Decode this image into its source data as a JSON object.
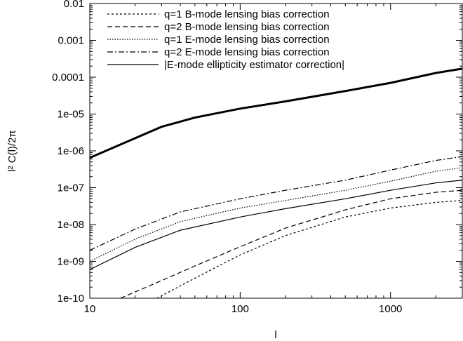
{
  "chart_data": {
    "type": "line",
    "title": "",
    "xlabel": "l",
    "ylabel": "l² C(l)/2π",
    "x_scale": "log",
    "y_scale": "log",
    "xlim": [
      10,
      3000
    ],
    "ylim": [
      1e-10,
      0.01
    ],
    "x_ticks": [
      "10",
      "100",
      "1000"
    ],
    "y_ticks": [
      "1e-10",
      "1e-09",
      "1e-08",
      "1e-07",
      "1e-06",
      "1e-05",
      "0.0001",
      "0.001",
      "0.01"
    ],
    "legend_position": "top-left",
    "series": [
      {
        "name": "q=1 B-mode lensing bias correction",
        "dash": "dotted-short",
        "points": [
          [
            28,
            1e-10
          ],
          [
            50,
            3.5e-10
          ],
          [
            100,
            1.5e-09
          ],
          [
            200,
            5e-09
          ],
          [
            500,
            1.6e-08
          ],
          [
            1000,
            2.8e-08
          ],
          [
            2000,
            4e-08
          ],
          [
            3000,
            4.5e-08
          ]
        ]
      },
      {
        "name": "q=2 B-mode lensing bias correction",
        "dash": "dashed",
        "points": [
          [
            16,
            1e-10
          ],
          [
            30,
            3e-10
          ],
          [
            50,
            7.5e-10
          ],
          [
            100,
            2.5e-09
          ],
          [
            200,
            8e-09
          ],
          [
            500,
            2.5e-08
          ],
          [
            1000,
            5e-08
          ],
          [
            2000,
            7.5e-08
          ],
          [
            3000,
            8.5e-08
          ]
        ]
      },
      {
        "name": "q=1 E-mode lensing bias correction",
        "dash": "dotted",
        "points": [
          [
            10,
            1e-09
          ],
          [
            20,
            4e-09
          ],
          [
            40,
            1.2e-08
          ],
          [
            100,
            2.8e-08
          ],
          [
            200,
            4.5e-08
          ],
          [
            500,
            8.5e-08
          ],
          [
            1000,
            1.5e-07
          ],
          [
            2000,
            2.8e-07
          ],
          [
            3000,
            3.5e-07
          ]
        ]
      },
      {
        "name": "q=2 E-mode lensing bias correction",
        "dash": "dash-dot",
        "points": [
          [
            10,
            2e-09
          ],
          [
            20,
            7.5e-09
          ],
          [
            40,
            2.2e-08
          ],
          [
            100,
            5e-08
          ],
          [
            200,
            8.5e-08
          ],
          [
            500,
            1.6e-07
          ],
          [
            1000,
            3e-07
          ],
          [
            2000,
            5.5e-07
          ],
          [
            3000,
            7e-07
          ]
        ]
      },
      {
        "name": "|E-mode ellipticity estimator correction|",
        "dash": "solid",
        "points": [
          [
            10,
            6e-10
          ],
          [
            20,
            2.4e-09
          ],
          [
            40,
            7e-09
          ],
          [
            100,
            1.6e-08
          ],
          [
            200,
            2.7e-08
          ],
          [
            500,
            5e-08
          ],
          [
            1000,
            8.5e-08
          ],
          [
            2000,
            1.35e-07
          ],
          [
            3000,
            1.6e-07
          ]
        ]
      },
      {
        "name": "",
        "dash": "solid-thick",
        "points": [
          [
            10,
            6.5e-07
          ],
          [
            20,
            2.2e-06
          ],
          [
            30,
            4.5e-06
          ],
          [
            50,
            8e-06
          ],
          [
            100,
            1.4e-05
          ],
          [
            200,
            2.2e-05
          ],
          [
            500,
            4.2e-05
          ],
          [
            1000,
            7e-05
          ],
          [
            2000,
            0.00013
          ],
          [
            3000,
            0.00017
          ]
        ]
      }
    ]
  }
}
